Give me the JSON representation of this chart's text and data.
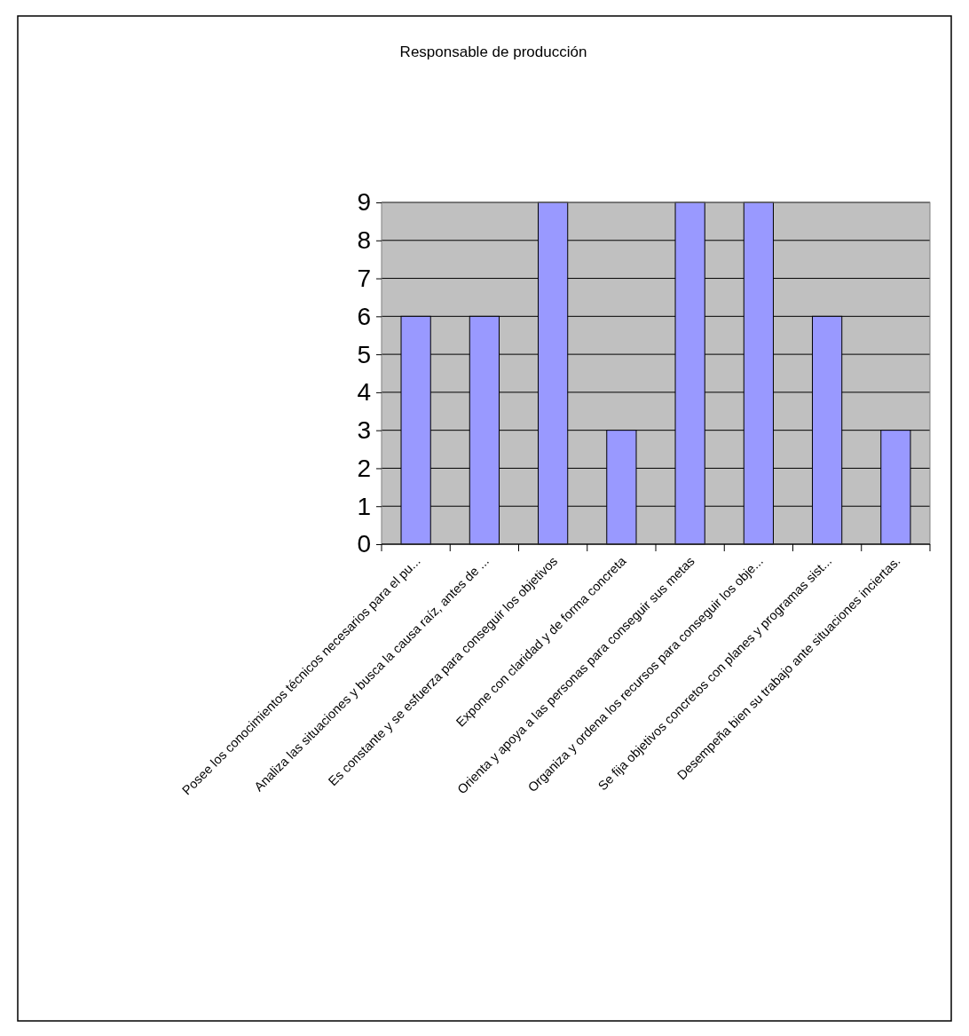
{
  "chart_data": {
    "type": "bar",
    "title": "Responsable de producción",
    "categories": [
      "Posee los conocimientos técnicos necesarios para el pu...",
      "Analiza las situaciones y busca la causa raíz, antes de ...",
      "Es constante y se esfuerza para conseguir los objetivos",
      "Expone con claridad y de forma concreta",
      "Orienta y apoya a las personas para conseguir sus metas",
      "Organiza y ordena los recursos para conseguir los obje...",
      "Se fija objetivos concretos con planes y programas sist...",
      "Desempeña bien su trabajo ante situaciones inciertas."
    ],
    "values": [
      6,
      6,
      9,
      3,
      9,
      9,
      6,
      3
    ],
    "color": "#9999ff",
    "ylim": [
      0,
      9
    ],
    "yticks": [
      0,
      1,
      2,
      3,
      4,
      5,
      6,
      7,
      8,
      9
    ],
    "grid": "y"
  }
}
